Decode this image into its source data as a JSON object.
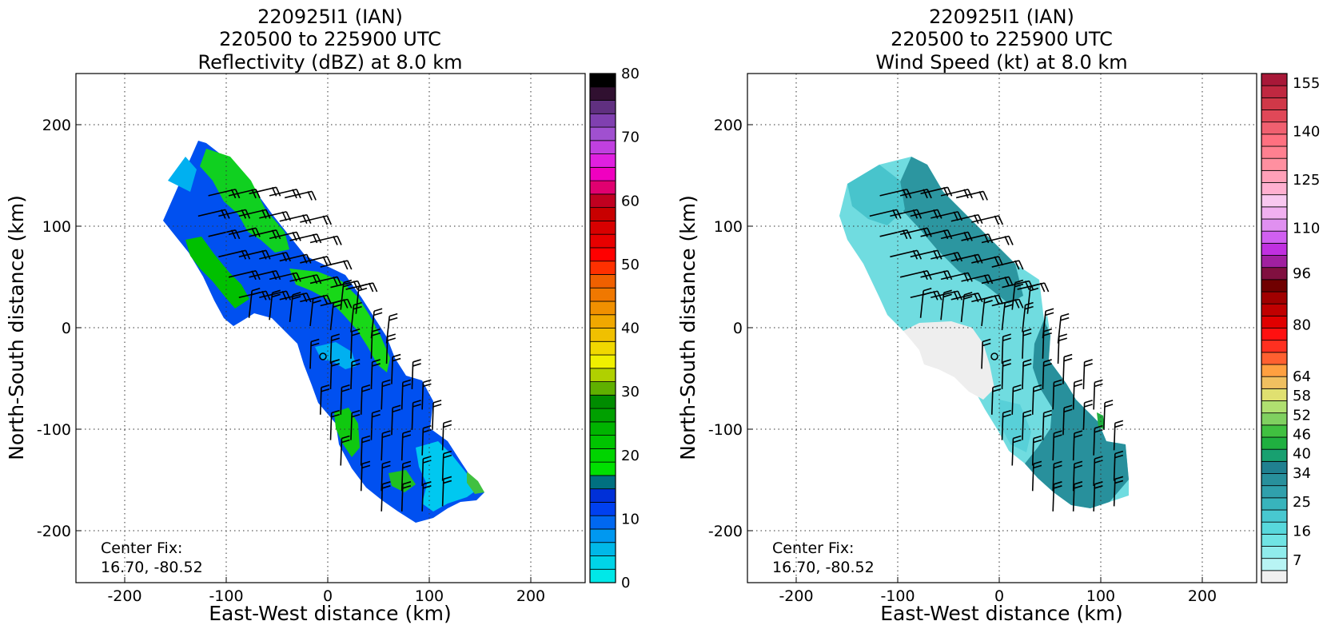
{
  "panels": [
    {
      "title_lines": [
        "220925I1 (IAN)",
        "220500 to 225900 UTC",
        "Reflectivity (dBZ) at 8.0 km"
      ],
      "xlabel": "East-West distance (km)",
      "ylabel": "North-South distance (km)",
      "center_fix": [
        "Center Fix:",
        "16.70, -80.52"
      ],
      "colorbar": {
        "min": 0,
        "max": 80,
        "tick_values": [
          0,
          10,
          20,
          30,
          40,
          50,
          60,
          70,
          80
        ],
        "colors": [
          "#00e8e8",
          "#00d4e8",
          "#00b8e8",
          "#0098f0",
          "#0068f0",
          "#0040f0",
          "#0030d8",
          "#007080",
          "#00e000",
          "#00d400",
          "#00c400",
          "#00b400",
          "#00a000",
          "#008c00",
          "#60b000",
          "#b0d000",
          "#f0f000",
          "#f0d800",
          "#f0c000",
          "#f0a800",
          "#f09000",
          "#f07800",
          "#f06000",
          "#ff3000",
          "#ff0000",
          "#e80000",
          "#d80000",
          "#c80000",
          "#c00020",
          "#e00070",
          "#f000c0",
          "#e020e0",
          "#c040e0",
          "#a050d0",
          "#8040b0",
          "#603080",
          "#301030",
          "#000000"
        ]
      },
      "chart_data": {
        "type": "heatmap",
        "field": "reflectivity",
        "x_range": [
          -250,
          250
        ],
        "y_range": [
          -250,
          250
        ],
        "x_ticks": [
          -200,
          -100,
          0,
          100,
          200
        ],
        "y_ticks": [
          -200,
          -100,
          0,
          100,
          200
        ],
        "grid": true,
        "center": [
          -5,
          -27
        ]
      }
    },
    {
      "title_lines": [
        "220925I1 (IAN)",
        "220500 to 225900 UTC",
        "Wind Speed (kt) at 8.0 km"
      ],
      "xlabel": "East-West distance (km)",
      "ylabel": "North-South distance (km)",
      "center_fix": [
        "Center Fix:",
        "16.70, -80.52"
      ],
      "colorbar": {
        "min": 0,
        "max": 158,
        "tick_values": [
          7,
          16,
          25,
          34,
          40,
          46,
          52,
          58,
          64,
          80,
          96,
          110,
          125,
          140,
          155
        ],
        "colors": [
          "#f0f0f0",
          "#b8f4f4",
          "#90ecec",
          "#70e4e4",
          "#58d8dc",
          "#48c8d0",
          "#38b4bc",
          "#30a0ac",
          "#28909c",
          "#208090",
          "#18a070",
          "#20b040",
          "#40c040",
          "#80d060",
          "#b0e070",
          "#e0e070",
          "#f0c060",
          "#ffa040",
          "#ff6030",
          "#ff3020",
          "#ff1010",
          "#e00000",
          "#c00000",
          "#a00000",
          "#700000",
          "#801040",
          "#a020a0",
          "#c030e0",
          "#d060f0",
          "#e090f0",
          "#f0b0f0",
          "#f8c8f0",
          "#ffb0d0",
          "#ffa0b8",
          "#ff90a0",
          "#ff8090",
          "#ff7080",
          "#f06070",
          "#e04858",
          "#d03848",
          "#c02840",
          "#a81838"
        ]
      },
      "chart_data": {
        "type": "heatmap",
        "field": "wind_speed",
        "x_range": [
          -250,
          250
        ],
        "y_range": [
          -250,
          250
        ],
        "x_ticks": [
          -200,
          -100,
          0,
          100,
          200
        ],
        "y_ticks": [
          -200,
          -100,
          0,
          100,
          200
        ],
        "grid": true,
        "center": [
          -5,
          -27
        ]
      }
    }
  ]
}
